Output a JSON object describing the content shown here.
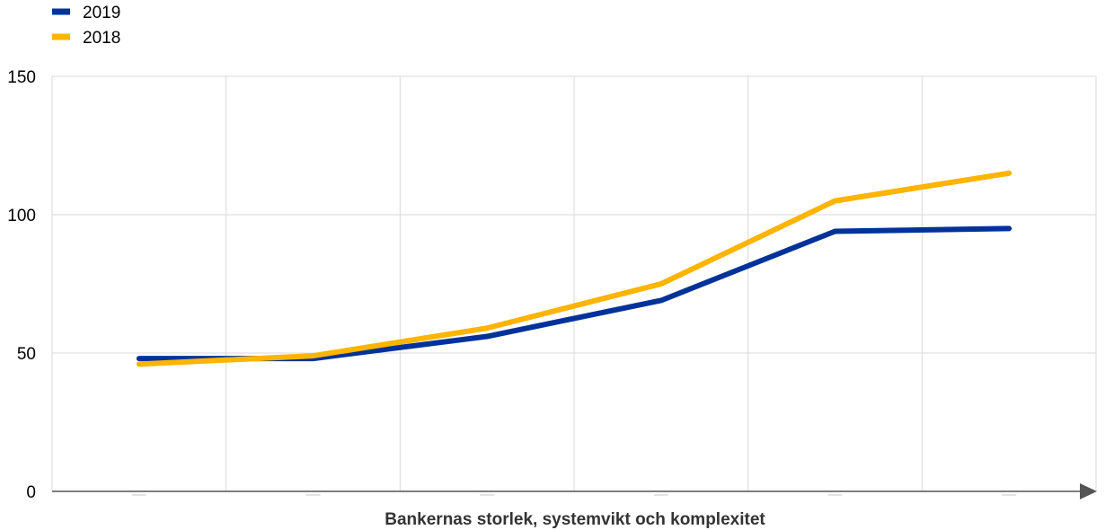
{
  "chart_data": {
    "type": "line",
    "title": "",
    "xlabel": "Bankernas storlek, systemvikt och komplexitet",
    "ylabel": "",
    "ylim": [
      0,
      150
    ],
    "yticks": [
      "0",
      "50",
      "100",
      "150"
    ],
    "x": [
      1,
      2,
      3,
      4,
      5,
      6
    ],
    "series": [
      {
        "name": "2019",
        "color": "#003299",
        "values": [
          48,
          48,
          56,
          69,
          94,
          95
        ]
      },
      {
        "name": "2018",
        "color": "#FFB400",
        "values": [
          46,
          49,
          59,
          75,
          105,
          115
        ]
      }
    ],
    "grid": true,
    "legend": "top-left"
  }
}
